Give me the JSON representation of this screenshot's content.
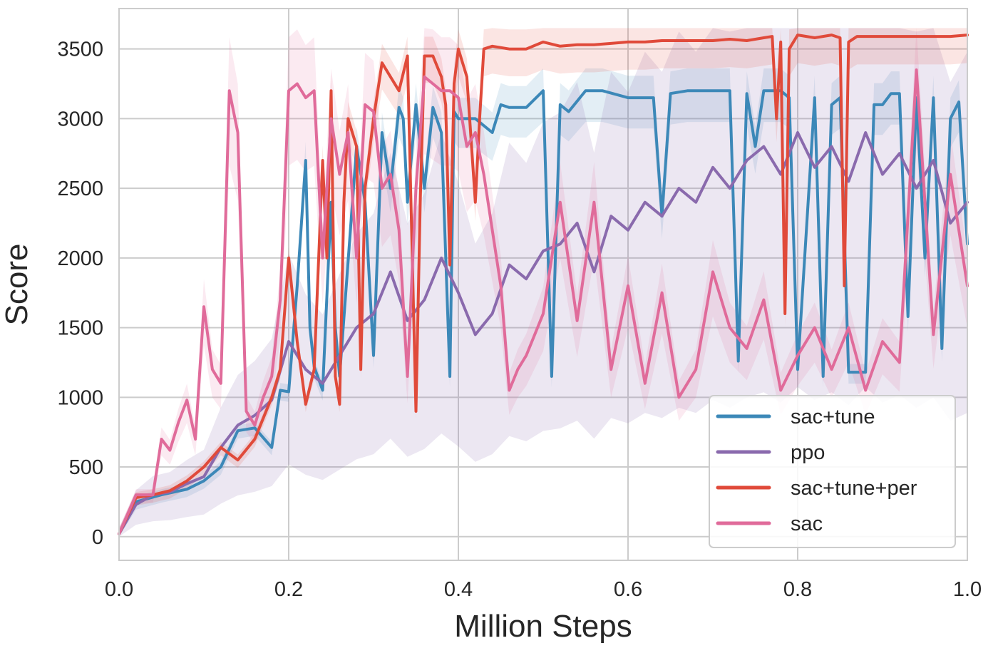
{
  "chart_data": {
    "type": "line",
    "xlabel": "Million Steps",
    "ylabel": "Score",
    "xlim": [
      0.0,
      1.0
    ],
    "ylim": [
      -170,
      3790
    ],
    "x_ticks": [
      0.0,
      0.2,
      0.4,
      0.6,
      0.8,
      1.0
    ],
    "x_tick_labels": [
      "0.0",
      "0.2",
      "0.4",
      "0.6",
      "0.8",
      "1.0"
    ],
    "y_ticks": [
      0,
      500,
      1000,
      1500,
      2000,
      2500,
      3000,
      3500
    ],
    "y_tick_labels": [
      "0",
      "500",
      "1000",
      "1500",
      "2000",
      "2500",
      "3000",
      "3500"
    ],
    "grid": true,
    "legend": {
      "position": "lower-right"
    },
    "series": [
      {
        "name": "sac+tune",
        "color": "#3c88b8",
        "x": [
          0.0,
          0.02,
          0.05,
          0.08,
          0.1,
          0.12,
          0.14,
          0.16,
          0.18,
          0.19,
          0.2,
          0.21,
          0.22,
          0.225,
          0.23,
          0.24,
          0.25,
          0.255,
          0.26,
          0.28,
          0.29,
          0.3,
          0.31,
          0.32,
          0.33,
          0.335,
          0.34,
          0.35,
          0.36,
          0.37,
          0.38,
          0.39,
          0.395,
          0.4,
          0.42,
          0.44,
          0.45,
          0.46,
          0.48,
          0.5,
          0.51,
          0.52,
          0.53,
          0.55,
          0.57,
          0.6,
          0.63,
          0.64,
          0.65,
          0.67,
          0.7,
          0.72,
          0.73,
          0.74,
          0.75,
          0.76,
          0.78,
          0.79,
          0.8,
          0.82,
          0.83,
          0.84,
          0.85,
          0.86,
          0.88,
          0.89,
          0.9,
          0.91,
          0.92,
          0.93,
          0.94,
          0.95,
          0.96,
          0.97,
          0.98,
          0.99,
          1.0
        ],
        "y": [
          20,
          250,
          300,
          340,
          400,
          500,
          760,
          780,
          640,
          1050,
          1040,
          1800,
          2700,
          1500,
          1220,
          1050,
          2400,
          1500,
          1150,
          2800,
          2400,
          1300,
          2900,
          2500,
          3080,
          3000,
          2400,
          3100,
          2500,
          3080,
          2900,
          1150,
          3050,
          3000,
          3000,
          2900,
          3100,
          3080,
          3080,
          3200,
          1150,
          3100,
          3050,
          3200,
          3200,
          3150,
          3150,
          2300,
          3180,
          3200,
          3200,
          3200,
          1260,
          3180,
          2800,
          3200,
          3200,
          3150,
          1200,
          3150,
          1150,
          3100,
          3150,
          1180,
          1180,
          3100,
          3100,
          3180,
          3180,
          1580,
          3150,
          2000,
          3150,
          1350,
          3000,
          3120,
          2100
        ]
      },
      {
        "name": "ppo",
        "color": "#8a6aad",
        "x": [
          0.0,
          0.02,
          0.04,
          0.06,
          0.08,
          0.1,
          0.12,
          0.14,
          0.16,
          0.18,
          0.2,
          0.22,
          0.24,
          0.26,
          0.28,
          0.3,
          0.32,
          0.34,
          0.36,
          0.38,
          0.4,
          0.42,
          0.44,
          0.46,
          0.48,
          0.5,
          0.52,
          0.54,
          0.56,
          0.58,
          0.6,
          0.62,
          0.64,
          0.66,
          0.68,
          0.7,
          0.72,
          0.74,
          0.76,
          0.78,
          0.8,
          0.82,
          0.84,
          0.86,
          0.88,
          0.9,
          0.92,
          0.94,
          0.96,
          0.98,
          1.0
        ],
        "y": [
          20,
          230,
          300,
          320,
          380,
          430,
          640,
          800,
          870,
          980,
          1400,
          1200,
          1100,
          1300,
          1500,
          1600,
          1900,
          1550,
          1700,
          2000,
          1750,
          1450,
          1600,
          1950,
          1850,
          2050,
          2100,
          2250,
          1900,
          2300,
          2200,
          2400,
          2300,
          2500,
          2400,
          2650,
          2500,
          2700,
          2800,
          2600,
          2900,
          2650,
          2800,
          2550,
          2900,
          2600,
          2750,
          2500,
          2700,
          2250,
          2400
        ]
      },
      {
        "name": "sac+tune+per",
        "color": "#e04a3a",
        "x": [
          0.0,
          0.02,
          0.04,
          0.06,
          0.08,
          0.1,
          0.12,
          0.14,
          0.16,
          0.18,
          0.19,
          0.2,
          0.21,
          0.22,
          0.23,
          0.24,
          0.245,
          0.25,
          0.255,
          0.26,
          0.265,
          0.27,
          0.28,
          0.285,
          0.29,
          0.3,
          0.31,
          0.32,
          0.33,
          0.34,
          0.35,
          0.355,
          0.36,
          0.37,
          0.38,
          0.385,
          0.39,
          0.395,
          0.4,
          0.41,
          0.42,
          0.425,
          0.43,
          0.44,
          0.46,
          0.48,
          0.5,
          0.52,
          0.54,
          0.56,
          0.58,
          0.6,
          0.62,
          0.64,
          0.66,
          0.68,
          0.7,
          0.72,
          0.74,
          0.76,
          0.77,
          0.775,
          0.78,
          0.785,
          0.79,
          0.8,
          0.82,
          0.84,
          0.85,
          0.855,
          0.86,
          0.87,
          0.88,
          0.9,
          0.92,
          0.94,
          0.96,
          0.98,
          1.0
        ],
        "y": [
          20,
          280,
          300,
          330,
          400,
          500,
          640,
          550,
          700,
          1000,
          1200,
          2000,
          1400,
          950,
          1200,
          2700,
          2000,
          3200,
          1150,
          950,
          2400,
          3000,
          2800,
          1200,
          2500,
          3000,
          3400,
          3300,
          3200,
          3450,
          900,
          2400,
          3450,
          3450,
          3300,
          3100,
          1950,
          3250,
          3500,
          3300,
          2400,
          3000,
          3500,
          3520,
          3500,
          3500,
          3550,
          3520,
          3530,
          3530,
          3540,
          3550,
          3550,
          3560,
          3560,
          3560,
          3560,
          3570,
          3560,
          3580,
          3590,
          3000,
          3550,
          1600,
          3500,
          3600,
          3580,
          3600,
          3580,
          1800,
          3550,
          3590,
          3590,
          3590,
          3590,
          3590,
          3590,
          3590,
          3600
        ]
      },
      {
        "name": "sac",
        "color": "#e06b9a",
        "x": [
          0.0,
          0.02,
          0.04,
          0.05,
          0.06,
          0.07,
          0.08,
          0.09,
          0.1,
          0.11,
          0.12,
          0.13,
          0.14,
          0.15,
          0.16,
          0.17,
          0.18,
          0.19,
          0.2,
          0.21,
          0.22,
          0.23,
          0.24,
          0.25,
          0.26,
          0.27,
          0.28,
          0.29,
          0.3,
          0.31,
          0.32,
          0.33,
          0.34,
          0.35,
          0.36,
          0.37,
          0.38,
          0.39,
          0.4,
          0.41,
          0.42,
          0.43,
          0.44,
          0.45,
          0.46,
          0.47,
          0.48,
          0.5,
          0.52,
          0.54,
          0.56,
          0.58,
          0.6,
          0.62,
          0.64,
          0.66,
          0.68,
          0.7,
          0.72,
          0.74,
          0.76,
          0.78,
          0.8,
          0.82,
          0.84,
          0.86,
          0.88,
          0.9,
          0.92,
          0.94,
          0.96,
          0.98,
          1.0
        ],
        "y": [
          20,
          300,
          300,
          700,
          620,
          820,
          980,
          700,
          1650,
          1200,
          1100,
          3200,
          2900,
          900,
          800,
          1000,
          1150,
          1700,
          3200,
          3250,
          3150,
          3200,
          2000,
          3000,
          2600,
          2900,
          2000,
          3100,
          3050,
          2500,
          2600,
          2200,
          1150,
          2500,
          3300,
          3250,
          3200,
          3200,
          3150,
          2800,
          2900,
          2600,
          2200,
          1800,
          1050,
          1200,
          1300,
          1600,
          2400,
          1550,
          2400,
          1200,
          1800,
          1100,
          1750,
          1000,
          1200,
          1900,
          1500,
          1350,
          1700,
          1050,
          1300,
          1500,
          1200,
          1500,
          1050,
          1400,
          1250,
          3350,
          1450,
          2600,
          1800
        ]
      }
    ]
  }
}
